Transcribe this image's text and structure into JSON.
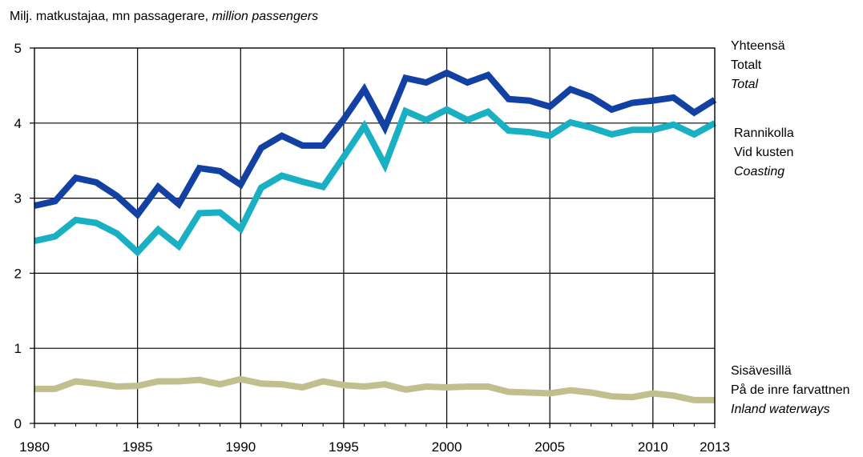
{
  "unit_label": {
    "fi": "Milj. matkustajaa,",
    "sv": "mn passagerare,",
    "en": "million passengers"
  },
  "legend": [
    {
      "lines": [
        "Yhteensä",
        "Totalt",
        "Total"
      ],
      "color": "#1340A3"
    },
    {
      "lines": [
        "Rannikolla",
        "Vid kusten",
        "Coasting"
      ],
      "color": "#1AB0C3"
    },
    {
      "lines": [
        "Sisävesillä",
        "På de inre farvattnen",
        "Inland waterways"
      ],
      "color": "#C2BF8E"
    }
  ],
  "chart_data": {
    "type": "line",
    "title": "",
    "xlabel": "",
    "ylabel": "Milj. matkustajaa, mn passagerare, million passengers",
    "xlim": [
      1980,
      2013
    ],
    "ylim": [
      0,
      5
    ],
    "x_ticks": [
      "1980",
      "1985",
      "1990",
      "1995",
      "2000",
      "2005",
      "2010",
      "2013"
    ],
    "y_ticks": [
      "0",
      "1",
      "2",
      "3",
      "4",
      "5"
    ],
    "grid": true,
    "legend_position": "right",
    "x": [
      1980,
      1981,
      1982,
      1983,
      1984,
      1985,
      1986,
      1987,
      1988,
      1989,
      1990,
      1991,
      1992,
      1993,
      1994,
      1995,
      1996,
      1997,
      1998,
      1999,
      2000,
      2001,
      2002,
      2003,
      2004,
      2005,
      2006,
      2007,
      2008,
      2009,
      2010,
      2011,
      2012,
      2013
    ],
    "series": [
      {
        "name": "Yhteensä / Totalt / Total",
        "color": "#1340A3",
        "values": [
          2.9,
          2.96,
          3.27,
          3.21,
          3.03,
          2.78,
          3.15,
          2.92,
          3.4,
          3.36,
          3.18,
          3.67,
          3.83,
          3.7,
          3.7,
          4.05,
          4.45,
          3.94,
          4.6,
          4.54,
          4.67,
          4.54,
          4.64,
          4.32,
          4.3,
          4.22,
          4.45,
          4.35,
          4.18,
          4.27,
          4.3,
          4.34,
          4.14,
          4.31
        ]
      },
      {
        "name": "Rannikolla / Vid kusten / Coasting",
        "color": "#1AB0C3",
        "values": [
          2.43,
          2.49,
          2.71,
          2.67,
          2.53,
          2.28,
          2.58,
          2.36,
          2.8,
          2.81,
          2.59,
          3.14,
          3.3,
          3.22,
          3.15,
          3.55,
          3.96,
          3.44,
          4.16,
          4.04,
          4.18,
          4.04,
          4.15,
          3.9,
          3.88,
          3.83,
          4.01,
          3.94,
          3.85,
          3.91,
          3.91,
          3.98,
          3.85,
          4.0
        ]
      },
      {
        "name": "Sisävesillä / På de inre farvattnen / Inland waterways",
        "color": "#C2BF8E",
        "values": [
          0.46,
          0.46,
          0.56,
          0.53,
          0.49,
          0.5,
          0.56,
          0.56,
          0.58,
          0.52,
          0.59,
          0.53,
          0.52,
          0.48,
          0.56,
          0.51,
          0.49,
          0.52,
          0.45,
          0.49,
          0.48,
          0.49,
          0.49,
          0.42,
          0.41,
          0.4,
          0.44,
          0.41,
          0.36,
          0.35,
          0.4,
          0.37,
          0.31,
          0.31
        ]
      }
    ]
  }
}
